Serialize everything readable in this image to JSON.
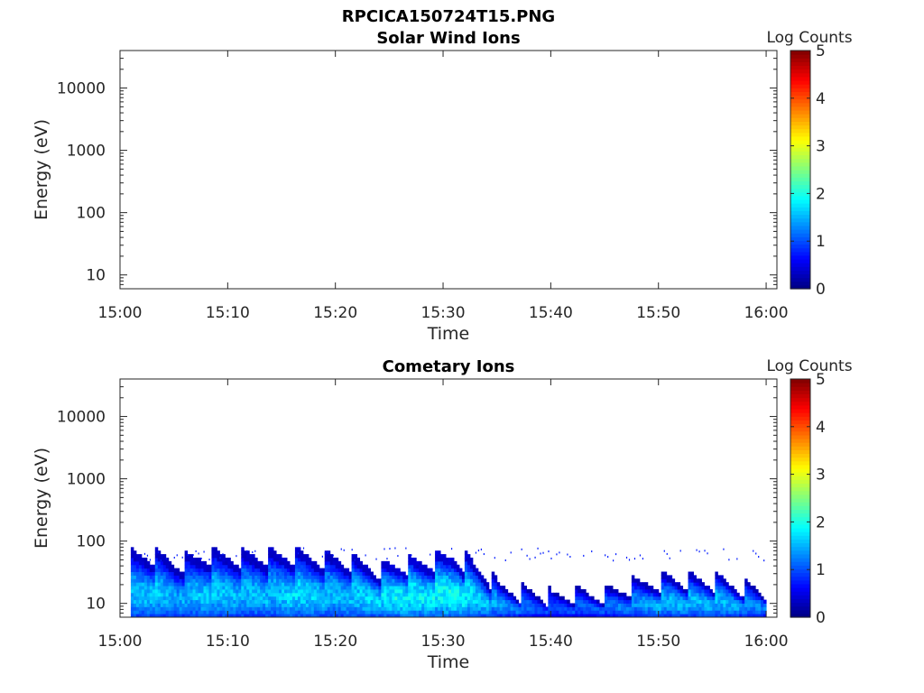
{
  "figure_title": "RPCICA150724T15.PNG",
  "chart_data": [
    {
      "type": "heatmap",
      "title": "Solar Wind Ions",
      "xlabel": "Time",
      "ylabel": "Energy (eV)",
      "x_ticks": [
        "15:00",
        "15:10",
        "15:20",
        "15:30",
        "15:40",
        "15:50",
        "16:00"
      ],
      "x_range": [
        "15:00",
        "16:01"
      ],
      "y_scale": "log",
      "y_ticks": [
        10,
        100,
        1000,
        10000
      ],
      "y_tick_labels": [
        "10",
        "100",
        "1000",
        "10000"
      ],
      "ylim": [
        6,
        40000
      ],
      "colorbar": {
        "label": "Log Counts",
        "range": [
          0,
          5
        ],
        "ticks": [
          "0",
          "1",
          "2",
          "3",
          "4",
          "5"
        ],
        "colormap": "jet"
      },
      "data": "none visible"
    },
    {
      "type": "heatmap",
      "title": "Cometary Ions",
      "xlabel": "Time",
      "ylabel": "Energy (eV)",
      "x_ticks": [
        "15:00",
        "15:10",
        "15:20",
        "15:30",
        "15:40",
        "15:50",
        "16:00"
      ],
      "x_range": [
        "15:00",
        "16:01"
      ],
      "y_scale": "log",
      "y_ticks": [
        10,
        100,
        1000,
        10000
      ],
      "y_tick_labels": [
        "10",
        "100",
        "1000",
        "10000"
      ],
      "ylim": [
        6,
        40000
      ],
      "colorbar": {
        "label": "Log Counts",
        "range": [
          0,
          5
        ],
        "ticks": [
          "0",
          "1",
          "2",
          "3",
          "4",
          "5"
        ],
        "colormap": "jet"
      },
      "signal_energy_range_eV": [
        6,
        80
      ],
      "envelope": [
        {
          "t": "15:01",
          "upper_eV": 80,
          "peak_log_counts": 1.6
        },
        {
          "t": "15:03",
          "upper_eV": 80,
          "peak_log_counts": 1.7
        },
        {
          "t": "15:05",
          "upper_eV": 60,
          "peak_log_counts": 1.5
        },
        {
          "t": "15:08",
          "upper_eV": 80,
          "peak_log_counts": 1.7
        },
        {
          "t": "15:11",
          "upper_eV": 80,
          "peak_log_counts": 1.6
        },
        {
          "t": "15:14",
          "upper_eV": 80,
          "peak_log_counts": 1.6
        },
        {
          "t": "15:16",
          "upper_eV": 80,
          "peak_log_counts": 1.8
        },
        {
          "t": "15:20",
          "upper_eV": 70,
          "peak_log_counts": 1.6
        },
        {
          "t": "15:24",
          "upper_eV": 50,
          "peak_log_counts": 1.8
        },
        {
          "t": "15:26",
          "upper_eV": 60,
          "peak_log_counts": 2.0
        },
        {
          "t": "15:28",
          "upper_eV": 60,
          "peak_log_counts": 1.9
        },
        {
          "t": "15:31",
          "upper_eV": 80,
          "peak_log_counts": 2.0
        },
        {
          "t": "15:35",
          "upper_eV": 25,
          "peak_log_counts": 1.5
        },
        {
          "t": "15:40",
          "upper_eV": 18,
          "peak_log_counts": 1.0
        },
        {
          "t": "15:45",
          "upper_eV": 20,
          "peak_log_counts": 1.2
        },
        {
          "t": "15:51",
          "upper_eV": 35,
          "peak_log_counts": 1.6
        },
        {
          "t": "15:56",
          "upper_eV": 30,
          "peak_log_counts": 1.6
        },
        {
          "t": "16:00",
          "upper_eV": 20,
          "peak_log_counts": 1.3
        }
      ]
    }
  ]
}
